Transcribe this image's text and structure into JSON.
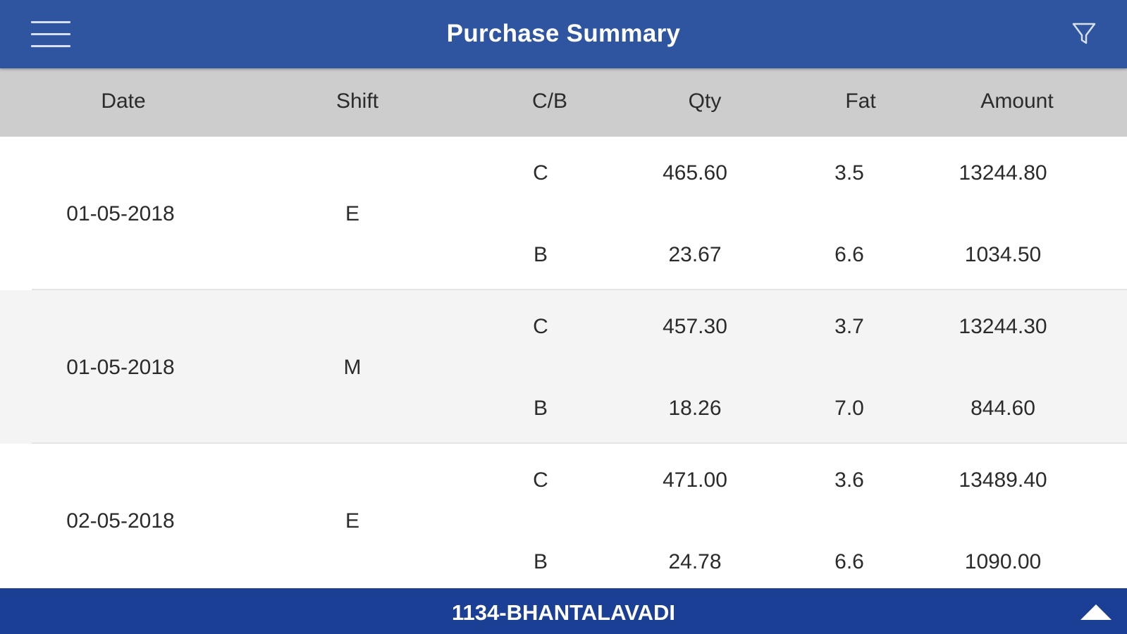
{
  "header": {
    "title": "Purchase Summary",
    "menu_icon": "hamburger-menu-icon",
    "filter_icon": "filter-funnel-icon"
  },
  "table": {
    "columns": [
      "Date",
      "Shift",
      "C/B",
      "Qty",
      "Fat",
      "Amount"
    ],
    "rows": [
      {
        "date": "01-05-2018",
        "shift": "E",
        "entries": [
          {
            "cb": "C",
            "qty": "465.60",
            "fat": "3.5",
            "amount": "13244.80"
          },
          {
            "cb": "B",
            "qty": "23.67",
            "fat": "6.6",
            "amount": "1034.50"
          }
        ]
      },
      {
        "date": "01-05-2018",
        "shift": "M",
        "entries": [
          {
            "cb": "C",
            "qty": "457.30",
            "fat": "3.7",
            "amount": "13244.30"
          },
          {
            "cb": "B",
            "qty": "18.26",
            "fat": "7.0",
            "amount": "844.60"
          }
        ]
      },
      {
        "date": "02-05-2018",
        "shift": "E",
        "entries": [
          {
            "cb": "C",
            "qty": "471.00",
            "fat": "3.6",
            "amount": "13489.40"
          },
          {
            "cb": "B",
            "qty": "24.78",
            "fat": "6.6",
            "amount": "1090.00"
          }
        ]
      }
    ]
  },
  "footer": {
    "branch": "1134-BHANTALAVADI",
    "expand_icon": "chevron-up-triangle-icon"
  },
  "colors": {
    "header_bg": "#2f55a0",
    "footer_bg": "#1c3f96",
    "column_header_bg": "#cdcdcd",
    "alt_row_bg": "#f4f4f4"
  }
}
